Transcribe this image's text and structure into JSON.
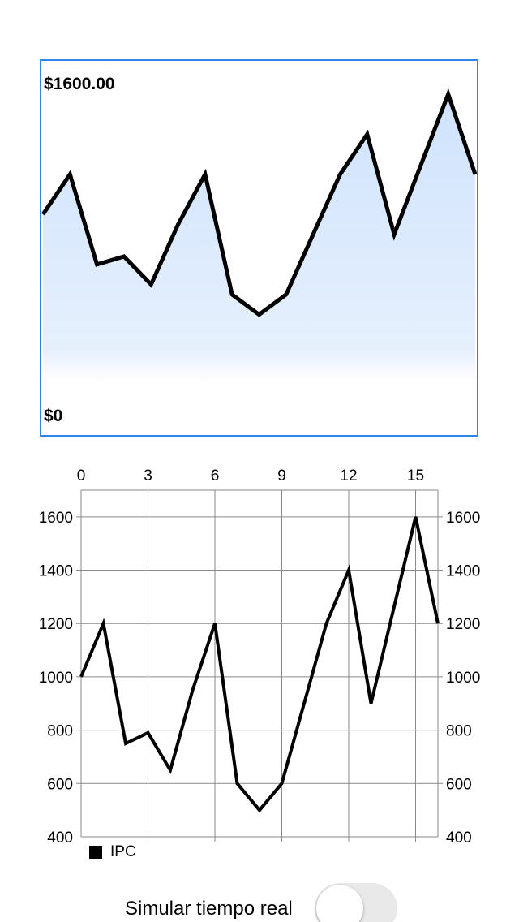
{
  "chart_data": [
    {
      "type": "area",
      "labels": {
        "max": "$1600.00",
        "min": "$0"
      },
      "x": [
        0,
        1,
        2,
        3,
        4,
        5,
        6,
        7,
        8,
        9,
        10,
        11,
        12,
        13,
        14,
        15,
        16
      ],
      "values": [
        1000,
        1200,
        750,
        790,
        650,
        950,
        1200,
        600,
        500,
        600,
        900,
        1200,
        1400,
        900,
        1250,
        1600,
        1200
      ],
      "ylim": [
        0,
        1600
      ],
      "colors": {
        "border": "#2f86e8",
        "fill_top": "#cfe3fd",
        "line": "#000000"
      }
    },
    {
      "type": "line",
      "x": [
        0,
        1,
        2,
        3,
        4,
        5,
        6,
        7,
        8,
        9,
        10,
        11,
        12,
        13,
        14,
        15,
        16
      ],
      "series": [
        {
          "name": "IPC",
          "values": [
            1000,
            1200,
            750,
            790,
            650,
            950,
            1200,
            600,
            500,
            600,
            900,
            1200,
            1400,
            900,
            1250,
            1600,
            1200
          ],
          "color": "#000000"
        }
      ],
      "xlim": [
        0,
        16
      ],
      "ylim": [
        400,
        1700
      ],
      "x_ticks": [
        "0",
        "3",
        "6",
        "9",
        "12",
        "15"
      ],
      "y_ticks": [
        "400",
        "600",
        "800",
        "1000",
        "1200",
        "1400",
        "1600"
      ],
      "grid": true,
      "legend": "bottom-left"
    }
  ],
  "legend": {
    "label": "IPC"
  },
  "toggle": {
    "label": "Simular tiempo real",
    "on": false
  }
}
